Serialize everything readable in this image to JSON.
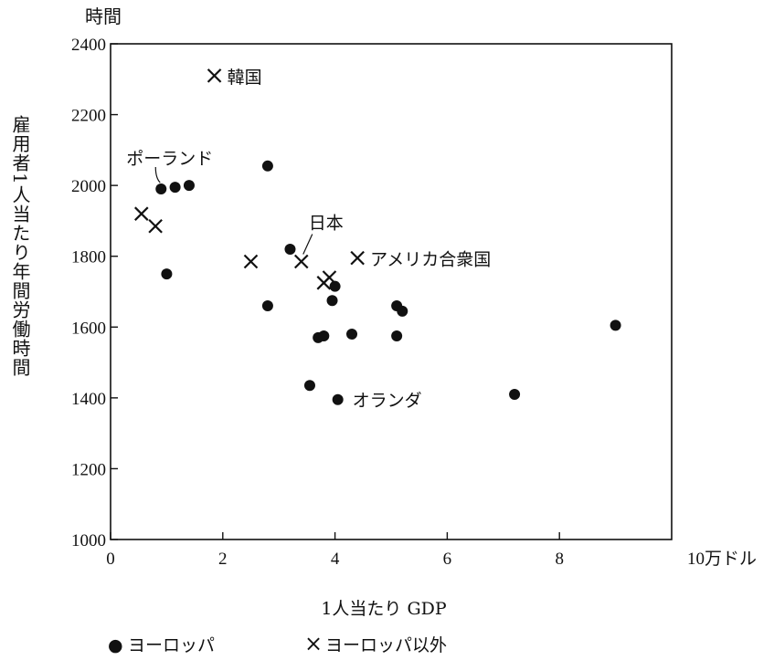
{
  "chart_data": {
    "type": "scatter",
    "xlabel": "1人当たり GDP",
    "ylabel": "雇用者1人当たり年間労働時間",
    "yunit": "時間",
    "xunit": "10万ドル",
    "xlim": [
      0,
      10
    ],
    "ylim": [
      1000,
      2400
    ],
    "x_ticks": [
      "0",
      "2",
      "4",
      "6",
      "8"
    ],
    "y_ticks": [
      "1000",
      "1200",
      "1400",
      "1600",
      "1800",
      "2000",
      "2200",
      "2400"
    ],
    "grid": false,
    "legend_position": "bottom-left",
    "series": [
      {
        "name": "ヨーロッパ",
        "marker": "circle",
        "points": [
          {
            "x": 0.9,
            "y": 1990
          },
          {
            "x": 1.15,
            "y": 1995
          },
          {
            "x": 1.4,
            "y": 2000
          },
          {
            "x": 1.0,
            "y": 1750
          },
          {
            "x": 2.8,
            "y": 2055
          },
          {
            "x": 2.8,
            "y": 1660
          },
          {
            "x": 3.2,
            "y": 1820
          },
          {
            "x": 3.55,
            "y": 1435
          },
          {
            "x": 3.7,
            "y": 1570
          },
          {
            "x": 3.8,
            "y": 1575
          },
          {
            "x": 3.95,
            "y": 1675
          },
          {
            "x": 4.0,
            "y": 1715
          },
          {
            "x": 4.05,
            "y": 1395
          },
          {
            "x": 4.3,
            "y": 1580
          },
          {
            "x": 5.1,
            "y": 1660
          },
          {
            "x": 5.2,
            "y": 1645
          },
          {
            "x": 5.1,
            "y": 1575
          },
          {
            "x": 7.2,
            "y": 1410
          },
          {
            "x": 9.0,
            "y": 1605
          }
        ]
      },
      {
        "name": "ヨーロッパ以外",
        "marker": "x",
        "points": [
          {
            "x": 1.85,
            "y": 2310
          },
          {
            "x": 0.55,
            "y": 1920
          },
          {
            "x": 0.8,
            "y": 1885
          },
          {
            "x": 2.5,
            "y": 1785
          },
          {
            "x": 3.4,
            "y": 1785
          },
          {
            "x": 3.8,
            "y": 1725
          },
          {
            "x": 3.9,
            "y": 1740
          },
          {
            "x": 4.4,
            "y": 1795
          }
        ]
      }
    ],
    "annotations": [
      {
        "text": "韓国",
        "x": 1.85,
        "y": 2310
      },
      {
        "text": "ポーランド",
        "x": 0.9,
        "y": 1990
      },
      {
        "text": "日本",
        "x": 3.4,
        "y": 1785
      },
      {
        "text": "アメリカ合衆国",
        "x": 4.4,
        "y": 1795
      },
      {
        "text": "オランダ",
        "x": 4.05,
        "y": 1395
      }
    ]
  },
  "legend": {
    "europe_symbol": "●",
    "europe_label": "ヨーロッパ",
    "other_symbol": "×",
    "other_label": "ヨーロッパ以外"
  }
}
